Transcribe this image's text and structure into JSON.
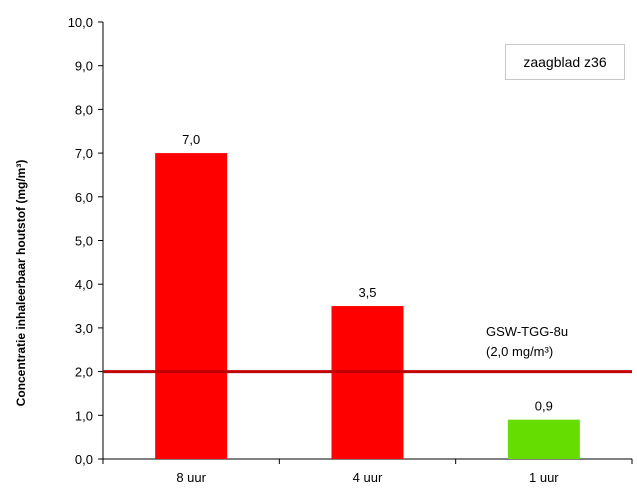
{
  "chart_data": {
    "type": "bar",
    "categories": [
      "8 uur",
      "4 uur",
      "1 uur"
    ],
    "values": [
      7.0,
      3.5,
      0.9
    ],
    "value_labels": [
      "7,0",
      "3,5",
      "0,9"
    ],
    "bar_colors": [
      "#ff0000",
      "#ff0000",
      "#66dd00"
    ],
    "title": "",
    "xlabel": "",
    "ylabel": "Concentratie inhaleerbaar houtstof (mg/m³)",
    "ylim": [
      0,
      10
    ],
    "yticks": [
      "0,0",
      "1,0",
      "2,0",
      "3,0",
      "4,0",
      "5,0",
      "6,0",
      "7,0",
      "8,0",
      "9,0",
      "10,0"
    ],
    "grid": false,
    "legend": {
      "placement": "top-right",
      "label": "zaagblad z36"
    },
    "reference_line": {
      "value": 2.0,
      "color": "#c00000",
      "label_line1": "GSW-TGG-8u",
      "label_line2": "(2,0 mg/m³)"
    }
  }
}
